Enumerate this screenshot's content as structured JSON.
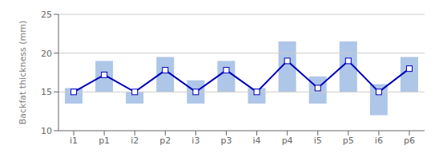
{
  "chart_data": {
    "type": "bar",
    "categories": [
      "i1",
      "p1",
      "i2",
      "p2",
      "i3",
      "p3",
      "i4",
      "p4",
      "i5",
      "p5",
      "i6",
      "p6"
    ],
    "ylabel": "Backfat thickness (mm)",
    "ylim": [
      10,
      25
    ],
    "yticks": [
      10,
      15,
      20,
      25
    ],
    "grid": false,
    "hlines": [
      15.0,
      20.0,
      25.0
    ],
    "series": [
      {
        "type": "bar",
        "color": "#aec6e8",
        "low": [
          13.5,
          15.0,
          13.5,
          15.0,
          13.5,
          15.0,
          13.5,
          15.0,
          13.5,
          15.0,
          12.0,
          15.0
        ],
        "high": [
          15.5,
          19.0,
          15.0,
          19.5,
          16.5,
          19.0,
          15.5,
          21.5,
          17.0,
          21.5,
          16.0,
          19.5
        ]
      },
      {
        "type": "line",
        "color": "#0000bb",
        "marker": "square",
        "values": [
          15.0,
          17.2,
          15.0,
          17.8,
          15.0,
          17.8,
          15.0,
          19.0,
          15.5,
          19.0,
          15.0,
          18.0
        ]
      }
    ]
  }
}
